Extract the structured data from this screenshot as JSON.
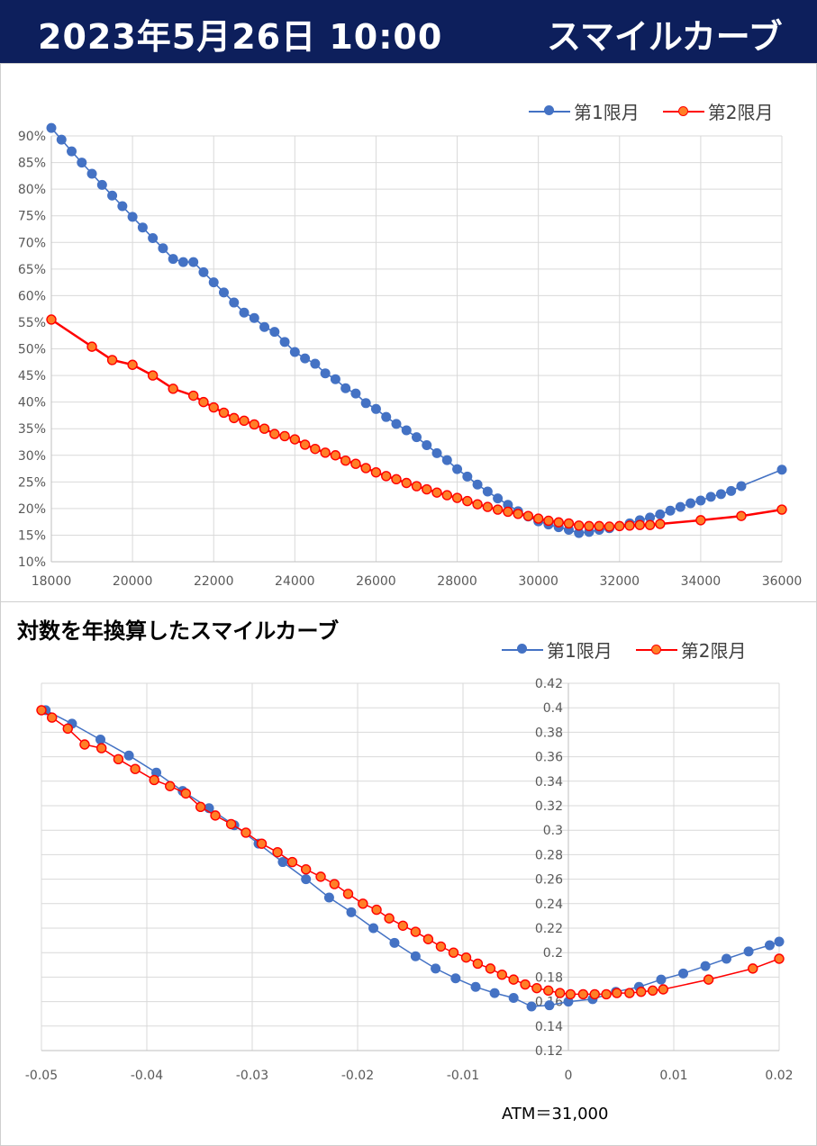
{
  "header": {
    "date": "2023年5月26日 10:00",
    "title": "スマイルカーブ"
  },
  "colors": {
    "header_bg": "#0d1f5c",
    "series1": "#4472c4",
    "series2": "#ff0000",
    "series2_fill": "#ff7f27",
    "grid": "#d9d9d9"
  },
  "legend": {
    "s1": "第1限月",
    "s2": "第2限月"
  },
  "chart2_title": "対数を年換算したスマイルカーブ",
  "atm_label": "ATM＝31,000",
  "chart_data": [
    {
      "type": "line",
      "xlim": [
        18000,
        36000
      ],
      "ylim": [
        10,
        90
      ],
      "x_ticks": [
        "18000",
        "20000",
        "22000",
        "24000",
        "26000",
        "28000",
        "30000",
        "32000",
        "34000",
        "36000"
      ],
      "y_ticks": [
        "10%",
        "15%",
        "20%",
        "25%",
        "30%",
        "35%",
        "40%",
        "45%",
        "50%",
        "55%",
        "60%",
        "65%",
        "70%",
        "75%",
        "80%",
        "85%",
        "90%"
      ],
      "grid": true,
      "legend_position": "top-right",
      "series": [
        {
          "name": "第1限月",
          "color": "#4472c4",
          "x": [
            18000,
            18250,
            18500,
            18750,
            19000,
            19250,
            19500,
            19750,
            20000,
            20250,
            20500,
            20750,
            21000,
            21250,
            21500,
            21750,
            22000,
            22250,
            22500,
            22750,
            23000,
            23250,
            23500,
            23750,
            24000,
            24250,
            24500,
            24750,
            25000,
            25250,
            25500,
            25750,
            26000,
            26250,
            26500,
            26750,
            27000,
            27250,
            27500,
            27750,
            28000,
            28250,
            28500,
            28750,
            29000,
            29250,
            29500,
            29750,
            30000,
            30250,
            30500,
            30750,
            31000,
            31250,
            31500,
            31750,
            32000,
            32250,
            32500,
            32750,
            33000,
            33250,
            33500,
            33750,
            34000,
            34250,
            34500,
            34750,
            35000,
            36000
          ],
          "y": [
            91.5,
            89.3,
            87.1,
            85.0,
            82.9,
            80.8,
            78.8,
            76.8,
            74.8,
            72.8,
            70.8,
            68.9,
            66.9,
            66.3,
            66.3,
            64.4,
            62.5,
            60.6,
            58.7,
            56.8,
            55.8,
            54.1,
            53.2,
            51.3,
            49.4,
            48.2,
            47.2,
            45.4,
            44.3,
            42.6,
            41.6,
            39.8,
            38.7,
            37.2,
            35.9,
            34.7,
            33.4,
            31.9,
            30.4,
            29.1,
            27.4,
            26.0,
            24.5,
            23.2,
            21.9,
            20.7,
            19.5,
            18.5,
            17.6,
            17.0,
            16.5,
            16.0,
            15.4,
            15.6,
            16.0,
            16.3,
            16.7,
            17.2,
            17.8,
            18.3,
            18.9,
            19.6,
            20.3,
            21.0,
            21.5,
            22.2,
            22.7,
            23.3,
            24.2,
            27.3
          ]
        },
        {
          "name": "第2限月",
          "color": "#ff0000",
          "x": [
            18000,
            19000,
            19500,
            20000,
            20500,
            21000,
            21500,
            21750,
            22000,
            22250,
            22500,
            22750,
            23000,
            23250,
            23500,
            23750,
            24000,
            24250,
            24500,
            24750,
            25000,
            25250,
            25500,
            25750,
            26000,
            26250,
            26500,
            26750,
            27000,
            27250,
            27500,
            27750,
            28000,
            28250,
            28500,
            28750,
            29000,
            29250,
            29500,
            29750,
            30000,
            30250,
            30500,
            30750,
            31000,
            31250,
            31500,
            31750,
            32000,
            32250,
            32500,
            32750,
            33000,
            34000,
            35000,
            36000
          ],
          "y": [
            55.5,
            50.4,
            47.9,
            47.0,
            45.0,
            42.5,
            41.2,
            40.0,
            39.0,
            38.0,
            37.0,
            36.5,
            35.8,
            35.0,
            34.0,
            33.6,
            33.0,
            32.0,
            31.2,
            30.5,
            30.0,
            29.0,
            28.4,
            27.6,
            26.8,
            26.1,
            25.5,
            24.8,
            24.2,
            23.6,
            23.0,
            22.5,
            22.0,
            21.4,
            20.8,
            20.3,
            19.8,
            19.4,
            19.0,
            18.6,
            18.1,
            17.7,
            17.4,
            17.2,
            16.8,
            16.7,
            16.7,
            16.6,
            16.7,
            16.8,
            16.9,
            16.9,
            17.1,
            17.8,
            18.6,
            19.8
          ]
        }
      ]
    },
    {
      "type": "line",
      "xlim": [
        -0.05,
        0.02
      ],
      "ylim": [
        0.12,
        0.42
      ],
      "x_ticks": [
        "-0.05",
        "-0.04",
        "-0.03",
        "-0.02",
        "-0.01",
        "0",
        "0.01",
        "0.02"
      ],
      "y_ticks": [
        "0.12",
        "0.14",
        "0.16",
        "0.18",
        "0.2",
        "0.22",
        "0.24",
        "0.26",
        "0.28",
        "0.3",
        "0.32",
        "0.34",
        "0.36",
        "0.38",
        "0.4",
        "0.42"
      ],
      "grid": true,
      "legend_position": "top-right",
      "series": [
        {
          "name": "第1限月",
          "color": "#4472c4",
          "x": [
            -0.0496,
            -0.0471,
            -0.0444,
            -0.0417,
            -0.0391,
            -0.0366,
            -0.0341,
            -0.0317,
            -0.0294,
            -0.0271,
            -0.0249,
            -0.0227,
            -0.0206,
            -0.0185,
            -0.0165,
            -0.0145,
            -0.0126,
            -0.0107,
            -0.0088,
            -0.007,
            -0.0052,
            -0.0035,
            -0.0018,
            0.0,
            0.0023,
            0.0045,
            0.0067,
            0.0088,
            0.0109,
            0.013,
            0.015,
            0.0171,
            0.0191,
            0.02
          ],
          "y": [
            0.398,
            0.387,
            0.374,
            0.361,
            0.347,
            0.332,
            0.318,
            0.304,
            0.289,
            0.274,
            0.26,
            0.245,
            0.233,
            0.22,
            0.208,
            0.197,
            0.187,
            0.179,
            0.172,
            0.167,
            0.163,
            0.156,
            0.157,
            0.16,
            0.162,
            0.168,
            0.172,
            0.178,
            0.183,
            0.189,
            0.195,
            0.201,
            0.206,
            0.209
          ]
        },
        {
          "name": "第2限月",
          "color": "#ff0000",
          "x": [
            -0.05,
            -0.049,
            -0.0475,
            -0.0459,
            -0.0443,
            -0.0427,
            -0.0411,
            -0.0393,
            -0.0378,
            -0.0363,
            -0.0349,
            -0.0335,
            -0.032,
            -0.0306,
            -0.0291,
            -0.0276,
            -0.0262,
            -0.0249,
            -0.0235,
            -0.0222,
            -0.0209,
            -0.0195,
            -0.0182,
            -0.017,
            -0.0157,
            -0.0145,
            -0.0133,
            -0.0121,
            -0.0109,
            -0.0097,
            -0.0086,
            -0.0074,
            -0.0063,
            -0.0052,
            -0.0041,
            -0.003,
            -0.0019,
            -0.0008,
            0.0002,
            0.0014,
            0.0025,
            0.0036,
            0.0046,
            0.0058,
            0.0069,
            0.008,
            0.009,
            0.0133,
            0.0175,
            0.02
          ],
          "y": [
            0.398,
            0.392,
            0.383,
            0.37,
            0.367,
            0.358,
            0.35,
            0.341,
            0.336,
            0.33,
            0.319,
            0.312,
            0.305,
            0.298,
            0.289,
            0.282,
            0.274,
            0.268,
            0.262,
            0.256,
            0.248,
            0.24,
            0.235,
            0.228,
            0.222,
            0.217,
            0.211,
            0.205,
            0.2,
            0.196,
            0.191,
            0.187,
            0.182,
            0.178,
            0.174,
            0.171,
            0.169,
            0.167,
            0.166,
            0.166,
            0.166,
            0.166,
            0.167,
            0.167,
            0.168,
            0.169,
            0.17,
            0.178,
            0.187,
            0.195
          ]
        }
      ]
    }
  ]
}
